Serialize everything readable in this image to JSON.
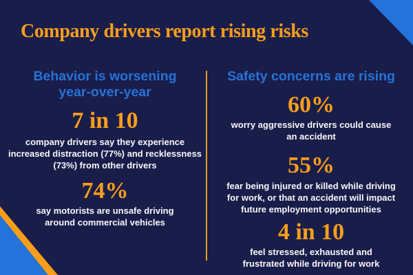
{
  "title": "Company drivers report rising risks",
  "colors": {
    "background_navy": "#191d4a",
    "accent_blue": "#2473db",
    "accent_orange": "#f99e1b",
    "body_text_white": "#f7f7f9"
  },
  "left_column": {
    "heading": [
      "Behavior is worsening",
      "year-over-year"
    ],
    "stats": [
      {
        "value": "7 in 10",
        "description": [
          "company drivers say they experience",
          "increased distraction (77%) and recklessness",
          "(73%) from other drivers"
        ]
      },
      {
        "value": "74%",
        "description": [
          "say motorists are unsafe driving",
          "around commercial vehicles"
        ]
      }
    ]
  },
  "right_column": {
    "heading": [
      "Safety concerns are rising"
    ],
    "stats": [
      {
        "value": "60%",
        "description": [
          "worry aggressive drivers could cause",
          "an accident"
        ]
      },
      {
        "value": "55%",
        "description": [
          "fear being injured or killed while driving",
          "for work, or that an accident will impact",
          "future employment opportunities"
        ]
      },
      {
        "value": "4 in 10",
        "description": [
          "feel stressed, exhausted and",
          "frustrated while driving for work"
        ]
      }
    ]
  }
}
